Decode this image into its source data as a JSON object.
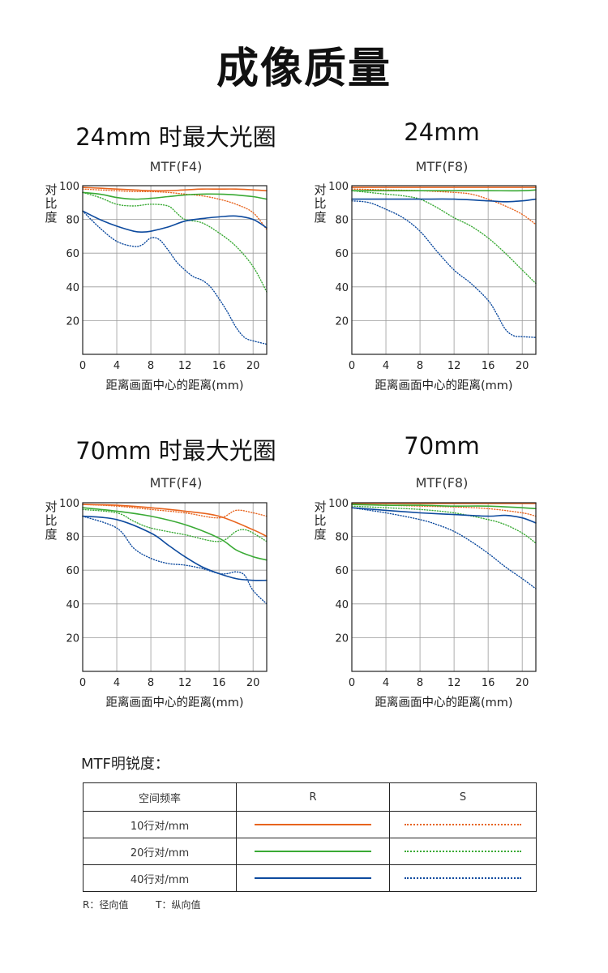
{
  "page_title": "成像质量",
  "colors": {
    "10": "#e8641e",
    "20": "#3aaa35",
    "40": "#0d4a9e"
  },
  "legend": {
    "title": "MTF明锐度：",
    "header": [
      "空间频率",
      "R",
      "S"
    ],
    "rows": [
      {
        "label": "10行对/mm",
        "freq": "10"
      },
      {
        "label": "20行对/mm",
        "freq": "20"
      },
      {
        "label": "40行对/mm",
        "freq": "40"
      }
    ],
    "footnote_r": "R：径向值",
    "footnote_t": "T：纵向值"
  },
  "chart_data": [
    {
      "type": "line",
      "heading": "24mm 时最大光圈",
      "subtitle": "MTF(F4)",
      "ylabel": "对比度",
      "xlabel": "距离画面中心的距离(mm)",
      "xlim": [
        0,
        21.6
      ],
      "ylim": [
        0,
        100
      ],
      "xticks": [
        0,
        4,
        8,
        12,
        16,
        20
      ],
      "yticks": [
        20,
        40,
        60,
        80,
        100
      ],
      "grid": true,
      "series": [
        {
          "freq": "10",
          "style": "R",
          "x": [
            0,
            2,
            4,
            6,
            8,
            10,
            12,
            14,
            16,
            18,
            20,
            21.6
          ],
          "y": [
            99,
            98.5,
            98,
            97.5,
            97,
            97,
            97.5,
            98,
            98,
            98,
            97.5,
            97
          ]
        },
        {
          "freq": "10",
          "style": "S",
          "x": [
            0,
            2,
            4,
            6,
            8,
            10,
            12,
            14,
            16,
            18,
            20,
            21.6
          ],
          "y": [
            98,
            97.5,
            97,
            96.5,
            96.5,
            96,
            95,
            94,
            92,
            89,
            84,
            74
          ]
        },
        {
          "freq": "20",
          "style": "R",
          "x": [
            0,
            2,
            4,
            6,
            8,
            10,
            12,
            14,
            16,
            18,
            20,
            21.6
          ],
          "y": [
            96,
            95,
            93,
            92,
            92.5,
            93.5,
            94.5,
            95,
            95,
            94.5,
            93.5,
            92
          ]
        },
        {
          "freq": "20",
          "style": "S",
          "x": [
            0,
            2,
            4,
            6,
            8,
            10,
            11,
            12,
            14,
            16,
            18,
            20,
            21.6
          ],
          "y": [
            96,
            93,
            89,
            88,
            89,
            88,
            84,
            80,
            78,
            72,
            64,
            52,
            37
          ]
        },
        {
          "freq": "40",
          "style": "R",
          "x": [
            0,
            2,
            4,
            6,
            7,
            8,
            10,
            12,
            14,
            16,
            18,
            20,
            21.6
          ],
          "y": [
            85,
            80,
            76,
            73,
            72.5,
            73,
            75.5,
            79,
            80.5,
            81.5,
            82,
            80,
            75
          ]
        },
        {
          "freq": "40",
          "style": "S",
          "x": [
            0,
            2,
            4,
            6,
            7,
            8,
            9,
            10,
            11,
            12,
            13,
            14,
            15,
            16,
            17,
            18,
            19,
            20,
            21.6
          ],
          "y": [
            85,
            75,
            67,
            64,
            65,
            69,
            68,
            62,
            55,
            50,
            46,
            44,
            40,
            33,
            25,
            16,
            10,
            8,
            6
          ]
        }
      ]
    },
    {
      "type": "line",
      "heading": "24mm",
      "subtitle": "MTF(F8)",
      "ylabel": "对比度",
      "xlabel": "距离画面中心的距离(mm)",
      "xlim": [
        0,
        21.6
      ],
      "ylim": [
        0,
        100
      ],
      "xticks": [
        0,
        4,
        8,
        12,
        16,
        20
      ],
      "yticks": [
        20,
        40,
        60,
        80,
        100
      ],
      "grid": true,
      "series": [
        {
          "freq": "10",
          "style": "R",
          "x": [
            0,
            4,
            8,
            12,
            16,
            20,
            21.6
          ],
          "y": [
            99,
            99,
            99,
            99,
            99,
            99,
            99
          ]
        },
        {
          "freq": "10",
          "style": "S",
          "x": [
            0,
            4,
            8,
            12,
            14,
            16,
            18,
            20,
            21.6
          ],
          "y": [
            98,
            97.5,
            97,
            96,
            95,
            92,
            88,
            83,
            77
          ]
        },
        {
          "freq": "20",
          "style": "R",
          "x": [
            0,
            4,
            8,
            12,
            16,
            20,
            21.6
          ],
          "y": [
            97,
            97,
            97,
            97,
            97,
            97,
            97.5
          ]
        },
        {
          "freq": "20",
          "style": "S",
          "x": [
            0,
            4,
            6,
            8,
            10,
            12,
            14,
            16,
            18,
            20,
            21.6
          ],
          "y": [
            97,
            95,
            94,
            92,
            87,
            81,
            76,
            69,
            60,
            50,
            42
          ]
        },
        {
          "freq": "40",
          "style": "R",
          "x": [
            0,
            4,
            8,
            12,
            16,
            18,
            20,
            21.6
          ],
          "y": [
            92,
            92,
            92,
            92,
            91,
            90.5,
            91,
            92
          ]
        },
        {
          "freq": "40",
          "style": "S",
          "x": [
            0,
            2,
            4,
            6,
            8,
            10,
            12,
            14,
            16,
            17,
            18,
            19,
            20,
            21.6
          ],
          "y": [
            91,
            90,
            86,
            81,
            73,
            61,
            50,
            42,
            32,
            24,
            15,
            11,
            10.5,
            10
          ]
        }
      ]
    },
    {
      "type": "line",
      "heading": "70mm 时最大光圈",
      "subtitle": "MTF(F4)",
      "ylabel": "对比度",
      "xlabel": "距离画面中心的距离(mm)",
      "xlim": [
        0,
        21.6
      ],
      "ylim": [
        0,
        100
      ],
      "xticks": [
        0,
        4,
        8,
        12,
        16,
        20
      ],
      "yticks": [
        20,
        40,
        60,
        80,
        100
      ],
      "grid": true,
      "series": [
        {
          "freq": "10",
          "style": "R",
          "x": [
            0,
            4,
            8,
            12,
            16,
            20,
            21.6
          ],
          "y": [
            99,
            98.5,
            97,
            95,
            92,
            84,
            80
          ]
        },
        {
          "freq": "10",
          "style": "S",
          "x": [
            0,
            4,
            8,
            12,
            16,
            18,
            20,
            21.6
          ],
          "y": [
            99,
            98,
            96,
            94,
            91,
            95.5,
            94,
            92
          ]
        },
        {
          "freq": "20",
          "style": "R",
          "x": [
            0,
            4,
            8,
            12,
            16,
            18,
            20,
            21.6
          ],
          "y": [
            97,
            95,
            92,
            87,
            79,
            72,
            68,
            66
          ]
        },
        {
          "freq": "20",
          "style": "S",
          "x": [
            0,
            4,
            6,
            8,
            12,
            16,
            18,
            19,
            20,
            21.6
          ],
          "y": [
            96,
            94,
            89,
            85,
            81,
            77,
            83,
            84,
            82,
            77
          ]
        },
        {
          "freq": "40",
          "style": "R",
          "x": [
            0,
            4,
            8,
            10,
            12,
            14,
            16,
            18,
            20,
            21.6
          ],
          "y": [
            92,
            90,
            82,
            75,
            68,
            62,
            58,
            55,
            54,
            54
          ]
        },
        {
          "freq": "40",
          "style": "S",
          "x": [
            0,
            4,
            6,
            8,
            10,
            12,
            14,
            16,
            17,
            18,
            19,
            20,
            21.6
          ],
          "y": [
            92,
            85,
            73,
            67,
            64,
            63,
            61,
            58,
            58,
            59,
            57,
            48,
            40
          ]
        }
      ]
    },
    {
      "type": "line",
      "heading": "70mm",
      "subtitle": "MTF(F8)",
      "ylabel": "对比度",
      "xlabel": "距离画面中心的距离(mm)",
      "xlim": [
        0,
        21.6
      ],
      "ylim": [
        0,
        100
      ],
      "xticks": [
        0,
        4,
        8,
        12,
        16,
        20
      ],
      "yticks": [
        20,
        40,
        60,
        80,
        100
      ],
      "grid": true,
      "series": [
        {
          "freq": "10",
          "style": "R",
          "x": [
            0,
            4,
            8,
            12,
            16,
            20,
            21.6
          ],
          "y": [
            99.5,
            99.5,
            99.5,
            99.5,
            99.5,
            99.5,
            99.5
          ]
        },
        {
          "freq": "10",
          "style": "S",
          "x": [
            0,
            4,
            8,
            12,
            16,
            20,
            21.6
          ],
          "y": [
            99,
            98.5,
            98,
            97.5,
            96.5,
            94,
            92
          ]
        },
        {
          "freq": "20",
          "style": "R",
          "x": [
            0,
            4,
            8,
            12,
            16,
            20,
            21.6
          ],
          "y": [
            99,
            98.5,
            98.5,
            98,
            98,
            97,
            96.5
          ]
        },
        {
          "freq": "20",
          "style": "S",
          "x": [
            0,
            4,
            8,
            12,
            16,
            18,
            20,
            21.6
          ],
          "y": [
            98,
            97,
            96,
            94,
            90,
            87,
            82,
            76
          ]
        },
        {
          "freq": "40",
          "style": "R",
          "x": [
            0,
            4,
            8,
            12,
            16,
            18,
            20,
            21.6
          ],
          "y": [
            97,
            95.5,
            94,
            93,
            92,
            92.5,
            91,
            88
          ]
        },
        {
          "freq": "40",
          "style": "S",
          "x": [
            0,
            4,
            8,
            10,
            12,
            14,
            16,
            18,
            20,
            21.6
          ],
          "y": [
            97,
            94,
            90,
            87,
            83,
            77,
            70,
            62,
            55,
            49
          ]
        }
      ]
    }
  ]
}
